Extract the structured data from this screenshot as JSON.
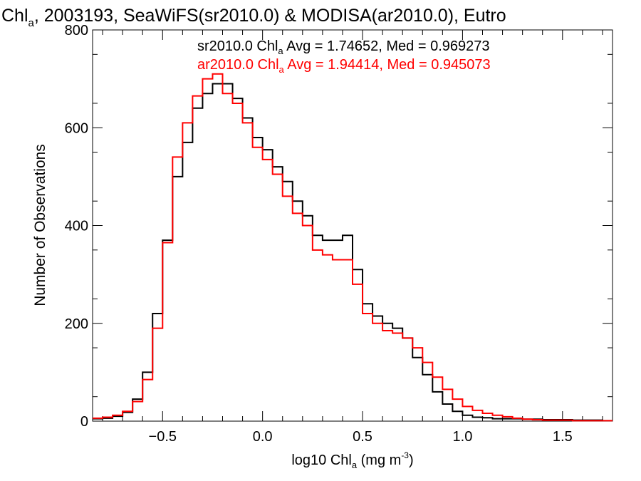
{
  "chart_data": {
    "type": "histogram",
    "title": {
      "part1": "Chl",
      "part1_sub": "a",
      "part2": ", 2003193, SeaWiFS(sr2010.0) & MODISA(ar2010.0), Eutro"
    },
    "xlabel": {
      "part1": "log10 Chl",
      "part1_sub": "a",
      "part2": " (mg m",
      "part2_sup": "-3",
      "part3": ")"
    },
    "ylabel": "Number of Observations",
    "xlim": [
      -0.85,
      1.75
    ],
    "ylim": [
      0,
      800
    ],
    "xticks": [
      -0.5,
      0.0,
      0.5,
      1.0,
      1.5
    ],
    "xtick_labels": [
      "−0.5",
      "0.0",
      "0.5",
      "1.0",
      "1.5"
    ],
    "yticks": [
      0,
      200,
      400,
      600,
      800
    ],
    "ytick_labels": [
      "0",
      "200",
      "400",
      "600",
      "800"
    ],
    "annotations": [
      {
        "pre": "sr2010.0 Chl",
        "sub": "a",
        "post": " Avg = 1.74652, Med = 0.969273",
        "color": "#000000"
      },
      {
        "pre": "ar2010.0 Chl",
        "sub": "a",
        "post": " Avg = 1.94414, Med = 0.945073",
        "color": "#ff0000"
      }
    ],
    "series": [
      {
        "color": "#000000",
        "x": [
          -0.85,
          -0.8,
          -0.75,
          -0.7,
          -0.65,
          -0.6,
          -0.55,
          -0.5,
          -0.45,
          -0.4,
          -0.35,
          -0.3,
          -0.25,
          -0.2,
          -0.15,
          -0.1,
          -0.05,
          0.0,
          0.05,
          0.1,
          0.15,
          0.2,
          0.25,
          0.3,
          0.35,
          0.4,
          0.45,
          0.5,
          0.55,
          0.6,
          0.65,
          0.7,
          0.75,
          0.8,
          0.85,
          0.9,
          0.95,
          1.0,
          1.05,
          1.1,
          1.15,
          1.2,
          1.25,
          1.3,
          1.35,
          1.4,
          1.45,
          1.5,
          1.55,
          1.6,
          1.65,
          1.7,
          1.75
        ],
        "y": [
          5,
          6,
          10,
          18,
          45,
          100,
          220,
          370,
          500,
          570,
          640,
          670,
          690,
          690,
          660,
          620,
          580,
          555,
          520,
          490,
          450,
          420,
          380,
          370,
          370,
          380,
          310,
          240,
          215,
          200,
          190,
          170,
          130,
          95,
          60,
          35,
          20,
          12,
          8,
          7,
          5,
          5,
          5,
          4,
          4,
          3,
          3,
          3,
          2,
          2,
          2,
          1,
          1
        ]
      },
      {
        "color": "#ff0000",
        "x": [
          -0.85,
          -0.8,
          -0.75,
          -0.7,
          -0.65,
          -0.6,
          -0.55,
          -0.5,
          -0.45,
          -0.4,
          -0.35,
          -0.3,
          -0.25,
          -0.2,
          -0.15,
          -0.1,
          -0.05,
          0.0,
          0.05,
          0.1,
          0.15,
          0.2,
          0.25,
          0.3,
          0.35,
          0.4,
          0.45,
          0.5,
          0.55,
          0.6,
          0.65,
          0.7,
          0.75,
          0.8,
          0.85,
          0.9,
          0.95,
          1.0,
          1.05,
          1.1,
          1.15,
          1.2,
          1.25,
          1.3,
          1.35,
          1.4,
          1.45,
          1.5,
          1.55,
          1.6,
          1.65,
          1.7,
          1.75
        ],
        "y": [
          6,
          8,
          12,
          20,
          40,
          85,
          190,
          365,
          540,
          610,
          665,
          700,
          710,
          670,
          650,
          610,
          560,
          535,
          505,
          460,
          425,
          400,
          350,
          340,
          330,
          330,
          280,
          220,
          200,
          185,
          180,
          170,
          150,
          120,
          90,
          65,
          45,
          30,
          22,
          16,
          12,
          9,
          6,
          4,
          3,
          2,
          2,
          2,
          1,
          1,
          1,
          1,
          1
        ]
      }
    ]
  }
}
